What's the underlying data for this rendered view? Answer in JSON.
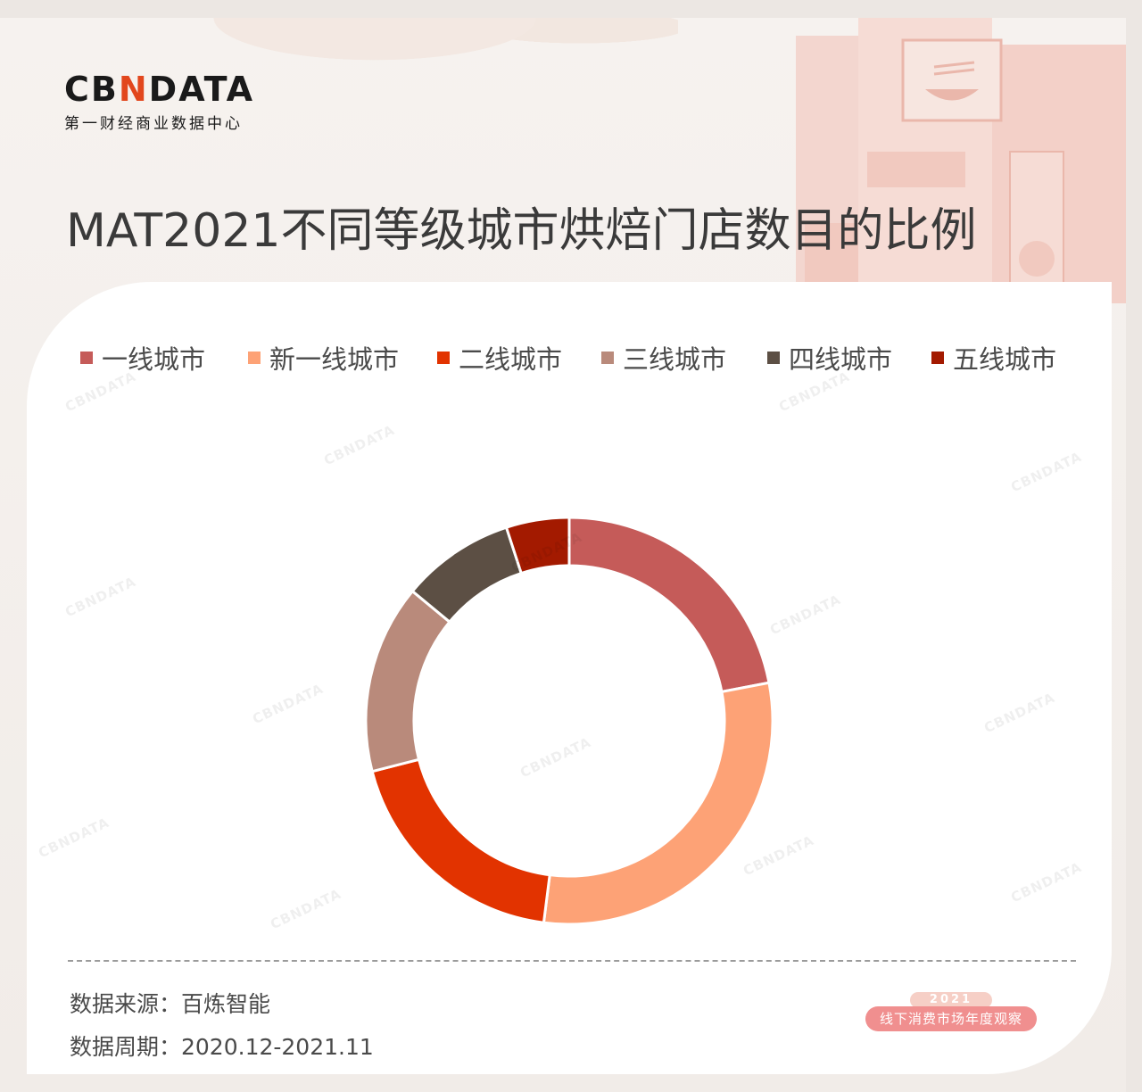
{
  "brand": {
    "logo_prefix": "CB",
    "logo_accent": "N",
    "logo_suffix": "DATA",
    "tagline": "第一财经商业数据中心"
  },
  "page_title": "MAT2021不同等级城市烘焙门店数目的比例",
  "chart_data": {
    "type": "pie",
    "title": "MAT2021不同等级城市烘焙门店数目的比例",
    "donut": true,
    "legend_position": "top",
    "series": [
      {
        "name": "一线城市",
        "value": 22,
        "color": "#c55b59"
      },
      {
        "name": "新一线城市",
        "value": 30,
        "color": "#fda276"
      },
      {
        "name": "二线城市",
        "value": 19,
        "color": "#e23300"
      },
      {
        "name": "三线城市",
        "value": 15,
        "color": "#b98a7b"
      },
      {
        "name": "四线城市",
        "value": 9,
        "color": "#5c4f44"
      },
      {
        "name": "五线城市",
        "value": 5,
        "color": "#a31a00"
      }
    ]
  },
  "footer": {
    "source": "数据来源：百炼智能",
    "period": "数据周期：2020.12-2021.11"
  },
  "badge": {
    "year": "2021",
    "label": "线下消费市场年度观察"
  },
  "watermark_text": "CBNDATA"
}
